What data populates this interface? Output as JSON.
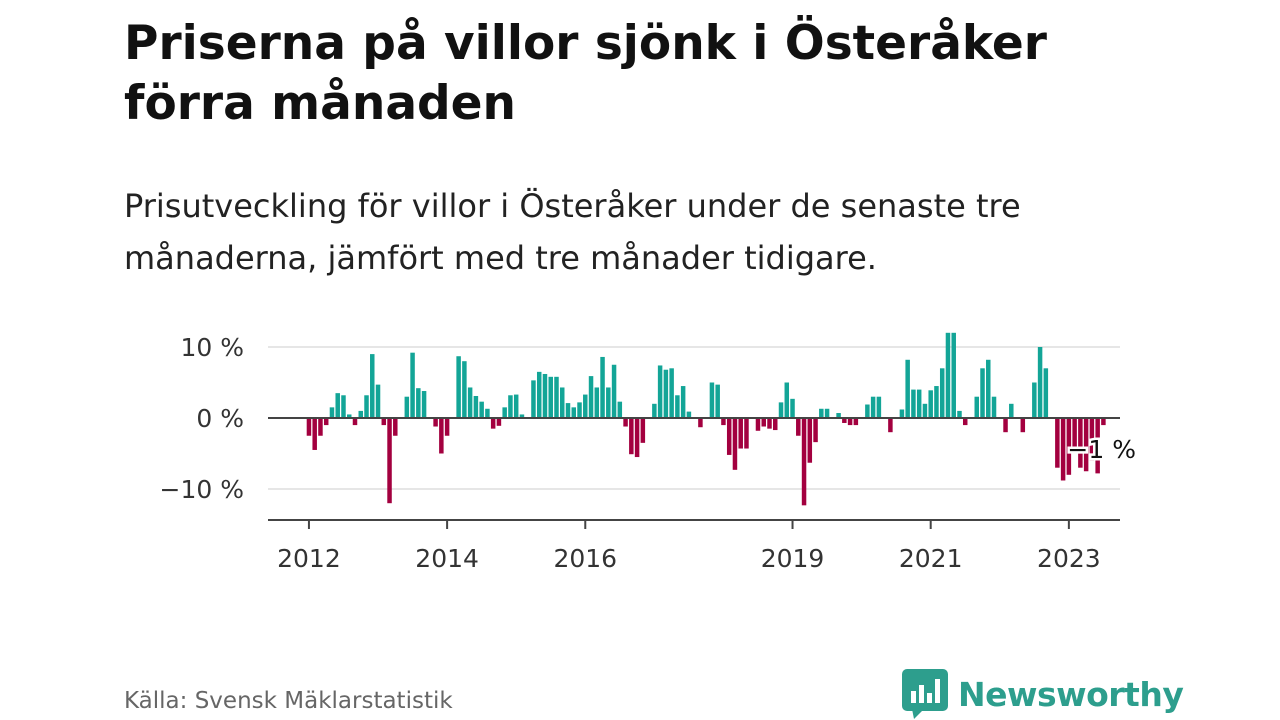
{
  "header": {
    "title": "Priserna på villor sjönk i Österåker förra månaden",
    "subtitle": "Prisutveckling för villor i Österåker under de senaste tre månaderna, jämfört med tre månader tidigare."
  },
  "footer": {
    "source": "Källa: Svensk Mäklarstatistik",
    "brand": "Newsworthy"
  },
  "colors": {
    "positive": "#13a597",
    "negative": "#a3003f",
    "brand": "#2d9e8d"
  },
  "chart_data": {
    "type": "bar",
    "start": "2011-07",
    "end_label": "−1 %",
    "ylim": [
      -14,
      14
    ],
    "y_ticks": [
      {
        "value": 10,
        "label": "10 %"
      },
      {
        "value": 0,
        "label": "0 %"
      },
      {
        "value": -10,
        "label": "−10 %"
      }
    ],
    "x_ticks": [
      {
        "date": "2012-01",
        "label": "2012"
      },
      {
        "date": "2014-01",
        "label": "2014"
      },
      {
        "date": "2016-01",
        "label": "2016"
      },
      {
        "date": "2019-01",
        "label": "2019"
      },
      {
        "date": "2021-01",
        "label": "2021"
      },
      {
        "date": "2023-01",
        "label": "2023"
      }
    ],
    "values": [
      0,
      0,
      0,
      0,
      0,
      0,
      -2.5,
      -4.5,
      -2.5,
      -1,
      1.5,
      3.5,
      3.2,
      0.5,
      -1,
      1,
      3.2,
      9,
      4.7,
      -1,
      -12,
      -2.5,
      0,
      3,
      9.2,
      4.2,
      3.8,
      0,
      -1.2,
      -5,
      -2.5,
      0,
      8.7,
      8,
      4.3,
      3.1,
      2.3,
      1.3,
      -1.5,
      -1.1,
      1.5,
      3.2,
      3.3,
      0.5,
      0,
      5.3,
      6.5,
      6.2,
      5.8,
      5.8,
      4.3,
      2.1,
      1.5,
      2.2,
      3.3,
      5.9,
      4.3,
      8.6,
      4.3,
      7.5,
      2.3,
      -1.2,
      -5.1,
      -5.5,
      -3.5,
      0,
      2,
      7.4,
      6.8,
      7,
      3.2,
      4.5,
      0.9,
      0,
      -1.3,
      0,
      5,
      4.7,
      -1,
      -5.2,
      -7.3,
      -4.3,
      -4.3,
      0,
      -1.8,
      -1.2,
      -1.5,
      -1.7,
      2.2,
      5,
      2.7,
      -2.5,
      -12.3,
      -6.3,
      -3.4,
      1.3,
      1.3,
      0,
      0.7,
      -0.7,
      -1,
      -1,
      0,
      1.9,
      3,
      3,
      0,
      -2,
      0,
      1.2,
      8.2,
      4,
      4,
      2,
      3.9,
      4.5,
      7,
      12,
      12,
      1,
      -1,
      0,
      3,
      7,
      8.2,
      3,
      0,
      -2,
      2,
      0,
      -2,
      0,
      5,
      10,
      7,
      0,
      -7,
      -8.8,
      -8,
      -4.5,
      -7,
      -7.5,
      -6,
      -7.8,
      -1
    ]
  }
}
